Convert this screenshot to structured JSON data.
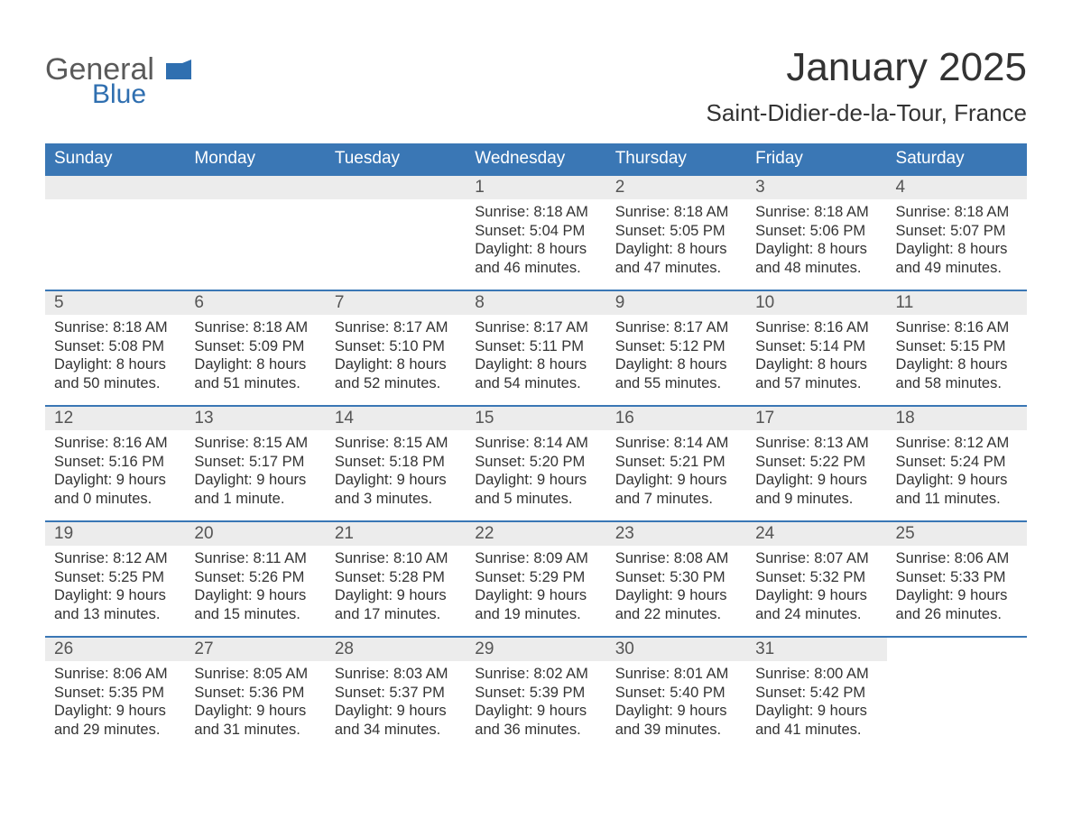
{
  "brand": {
    "part1": "General",
    "part2": "Blue",
    "accent_color": "#2f6fb0"
  },
  "title": "January 2025",
  "location": "Saint-Didier-de-la-Tour, France",
  "colors": {
    "header_bg": "#3a77b5",
    "header_fg": "#ffffff",
    "daynum_bg": "#ececec",
    "row_border": "#3a77b5",
    "page_bg": "#ffffff",
    "text": "#333333"
  },
  "typography": {
    "month_title_size_pt": 33,
    "location_size_pt": 20,
    "dayheader_size_pt": 14,
    "body_size_pt": 12
  },
  "day_headers": [
    "Sunday",
    "Monday",
    "Tuesday",
    "Wednesday",
    "Thursday",
    "Friday",
    "Saturday"
  ],
  "weeks": [
    [
      null,
      null,
      null,
      {
        "n": "1",
        "sunrise": "Sunrise: 8:18 AM",
        "sunset": "Sunset: 5:04 PM",
        "d1": "Daylight: 8 hours",
        "d2": "and 46 minutes."
      },
      {
        "n": "2",
        "sunrise": "Sunrise: 8:18 AM",
        "sunset": "Sunset: 5:05 PM",
        "d1": "Daylight: 8 hours",
        "d2": "and 47 minutes."
      },
      {
        "n": "3",
        "sunrise": "Sunrise: 8:18 AM",
        "sunset": "Sunset: 5:06 PM",
        "d1": "Daylight: 8 hours",
        "d2": "and 48 minutes."
      },
      {
        "n": "4",
        "sunrise": "Sunrise: 8:18 AM",
        "sunset": "Sunset: 5:07 PM",
        "d1": "Daylight: 8 hours",
        "d2": "and 49 minutes."
      }
    ],
    [
      {
        "n": "5",
        "sunrise": "Sunrise: 8:18 AM",
        "sunset": "Sunset: 5:08 PM",
        "d1": "Daylight: 8 hours",
        "d2": "and 50 minutes."
      },
      {
        "n": "6",
        "sunrise": "Sunrise: 8:18 AM",
        "sunset": "Sunset: 5:09 PM",
        "d1": "Daylight: 8 hours",
        "d2": "and 51 minutes."
      },
      {
        "n": "7",
        "sunrise": "Sunrise: 8:17 AM",
        "sunset": "Sunset: 5:10 PM",
        "d1": "Daylight: 8 hours",
        "d2": "and 52 minutes."
      },
      {
        "n": "8",
        "sunrise": "Sunrise: 8:17 AM",
        "sunset": "Sunset: 5:11 PM",
        "d1": "Daylight: 8 hours",
        "d2": "and 54 minutes."
      },
      {
        "n": "9",
        "sunrise": "Sunrise: 8:17 AM",
        "sunset": "Sunset: 5:12 PM",
        "d1": "Daylight: 8 hours",
        "d2": "and 55 minutes."
      },
      {
        "n": "10",
        "sunrise": "Sunrise: 8:16 AM",
        "sunset": "Sunset: 5:14 PM",
        "d1": "Daylight: 8 hours",
        "d2": "and 57 minutes."
      },
      {
        "n": "11",
        "sunrise": "Sunrise: 8:16 AM",
        "sunset": "Sunset: 5:15 PM",
        "d1": "Daylight: 8 hours",
        "d2": "and 58 minutes."
      }
    ],
    [
      {
        "n": "12",
        "sunrise": "Sunrise: 8:16 AM",
        "sunset": "Sunset: 5:16 PM",
        "d1": "Daylight: 9 hours",
        "d2": "and 0 minutes."
      },
      {
        "n": "13",
        "sunrise": "Sunrise: 8:15 AM",
        "sunset": "Sunset: 5:17 PM",
        "d1": "Daylight: 9 hours",
        "d2": "and 1 minute."
      },
      {
        "n": "14",
        "sunrise": "Sunrise: 8:15 AM",
        "sunset": "Sunset: 5:18 PM",
        "d1": "Daylight: 9 hours",
        "d2": "and 3 minutes."
      },
      {
        "n": "15",
        "sunrise": "Sunrise: 8:14 AM",
        "sunset": "Sunset: 5:20 PM",
        "d1": "Daylight: 9 hours",
        "d2": "and 5 minutes."
      },
      {
        "n": "16",
        "sunrise": "Sunrise: 8:14 AM",
        "sunset": "Sunset: 5:21 PM",
        "d1": "Daylight: 9 hours",
        "d2": "and 7 minutes."
      },
      {
        "n": "17",
        "sunrise": "Sunrise: 8:13 AM",
        "sunset": "Sunset: 5:22 PM",
        "d1": "Daylight: 9 hours",
        "d2": "and 9 minutes."
      },
      {
        "n": "18",
        "sunrise": "Sunrise: 8:12 AM",
        "sunset": "Sunset: 5:24 PM",
        "d1": "Daylight: 9 hours",
        "d2": "and 11 minutes."
      }
    ],
    [
      {
        "n": "19",
        "sunrise": "Sunrise: 8:12 AM",
        "sunset": "Sunset: 5:25 PM",
        "d1": "Daylight: 9 hours",
        "d2": "and 13 minutes."
      },
      {
        "n": "20",
        "sunrise": "Sunrise: 8:11 AM",
        "sunset": "Sunset: 5:26 PM",
        "d1": "Daylight: 9 hours",
        "d2": "and 15 minutes."
      },
      {
        "n": "21",
        "sunrise": "Sunrise: 8:10 AM",
        "sunset": "Sunset: 5:28 PM",
        "d1": "Daylight: 9 hours",
        "d2": "and 17 minutes."
      },
      {
        "n": "22",
        "sunrise": "Sunrise: 8:09 AM",
        "sunset": "Sunset: 5:29 PM",
        "d1": "Daylight: 9 hours",
        "d2": "and 19 minutes."
      },
      {
        "n": "23",
        "sunrise": "Sunrise: 8:08 AM",
        "sunset": "Sunset: 5:30 PM",
        "d1": "Daylight: 9 hours",
        "d2": "and 22 minutes."
      },
      {
        "n": "24",
        "sunrise": "Sunrise: 8:07 AM",
        "sunset": "Sunset: 5:32 PM",
        "d1": "Daylight: 9 hours",
        "d2": "and 24 minutes."
      },
      {
        "n": "25",
        "sunrise": "Sunrise: 8:06 AM",
        "sunset": "Sunset: 5:33 PM",
        "d1": "Daylight: 9 hours",
        "d2": "and 26 minutes."
      }
    ],
    [
      {
        "n": "26",
        "sunrise": "Sunrise: 8:06 AM",
        "sunset": "Sunset: 5:35 PM",
        "d1": "Daylight: 9 hours",
        "d2": "and 29 minutes."
      },
      {
        "n": "27",
        "sunrise": "Sunrise: 8:05 AM",
        "sunset": "Sunset: 5:36 PM",
        "d1": "Daylight: 9 hours",
        "d2": "and 31 minutes."
      },
      {
        "n": "28",
        "sunrise": "Sunrise: 8:03 AM",
        "sunset": "Sunset: 5:37 PM",
        "d1": "Daylight: 9 hours",
        "d2": "and 34 minutes."
      },
      {
        "n": "29",
        "sunrise": "Sunrise: 8:02 AM",
        "sunset": "Sunset: 5:39 PM",
        "d1": "Daylight: 9 hours",
        "d2": "and 36 minutes."
      },
      {
        "n": "30",
        "sunrise": "Sunrise: 8:01 AM",
        "sunset": "Sunset: 5:40 PM",
        "d1": "Daylight: 9 hours",
        "d2": "and 39 minutes."
      },
      {
        "n": "31",
        "sunrise": "Sunrise: 8:00 AM",
        "sunset": "Sunset: 5:42 PM",
        "d1": "Daylight: 9 hours",
        "d2": "and 41 minutes."
      },
      null
    ]
  ]
}
